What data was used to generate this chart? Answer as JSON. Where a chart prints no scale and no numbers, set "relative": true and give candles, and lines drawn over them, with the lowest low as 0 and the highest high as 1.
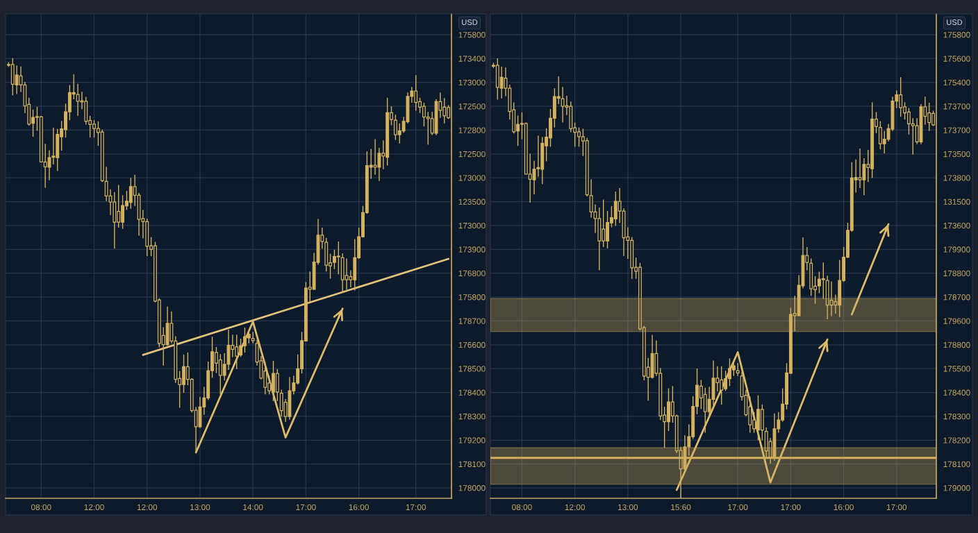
{
  "chart_data": [
    {
      "type": "candlestick",
      "relative": true,
      "ylabel": "USD",
      "color": "#d4b25f",
      "grid": true,
      "categories": [
        null,
        null,
        null,
        null,
        null,
        null,
        null,
        null,
        "08:00",
        null,
        null,
        null,
        null,
        null,
        null,
        null,
        null,
        null,
        null,
        null,
        null,
        "12:00",
        null,
        null,
        null,
        null,
        null,
        null,
        null,
        null,
        null,
        null,
        null,
        null,
        "12:00",
        null,
        null,
        null,
        null,
        null,
        null,
        null,
        null,
        null,
        null,
        null,
        null,
        "13:00",
        null,
        null,
        null,
        null,
        null,
        null,
        null,
        null,
        null,
        null,
        null,
        null,
        "14:00",
        null,
        null,
        null,
        null,
        null,
        null,
        null,
        null,
        null,
        null,
        null,
        null,
        "17:00",
        null,
        null,
        null,
        null,
        null,
        null,
        null,
        null,
        null,
        null,
        null,
        null,
        "16:00",
        null,
        null,
        null,
        null,
        null,
        null,
        null,
        null,
        null,
        null,
        null,
        null,
        null,
        "17:00",
        null,
        null,
        null,
        null,
        null,
        null,
        null,
        null
      ],
      "ohlc": [
        [
          0.984,
          0.99,
          0.978,
          0.982
        ],
        [
          0.984,
          1.0,
          0.906,
          0.934
        ],
        [
          0.932,
          0.981,
          0.909,
          0.957
        ],
        [
          0.955,
          0.979,
          0.914,
          0.932
        ],
        [
          0.932,
          0.94,
          0.861,
          0.879
        ],
        [
          0.883,
          0.9,
          0.829,
          0.833
        ],
        [
          0.835,
          0.87,
          0.801,
          0.85
        ],
        [
          0.852,
          0.877,
          0.816,
          0.85
        ],
        [
          0.852,
          0.854,
          0.737,
          0.737
        ],
        [
          0.737,
          0.783,
          0.672,
          0.725
        ],
        [
          0.724,
          0.767,
          0.691,
          0.748
        ],
        [
          0.749,
          0.824,
          0.731,
          0.752
        ],
        [
          0.748,
          0.821,
          0.714,
          0.807
        ],
        [
          0.801,
          0.841,
          0.766,
          0.821
        ],
        [
          0.819,
          0.885,
          0.799,
          0.864
        ],
        [
          0.864,
          0.932,
          0.843,
          0.913
        ],
        [
          0.909,
          0.959,
          0.896,
          0.913
        ],
        [
          0.908,
          0.935,
          0.854,
          0.891
        ],
        [
          0.892,
          0.915,
          0.871,
          0.889
        ],
        [
          0.891,
          0.902,
          0.832,
          0.84
        ],
        [
          0.842,
          0.854,
          0.799,
          0.832
        ],
        [
          0.833,
          0.843,
          0.799,
          0.822
        ],
        [
          0.822,
          0.84,
          0.778,
          0.812
        ],
        [
          0.813,
          0.819,
          0.686,
          0.69
        ],
        [
          0.688,
          0.725,
          0.638,
          0.651
        ],
        [
          0.651,
          0.668,
          0.603,
          0.636
        ],
        [
          0.636,
          0.661,
          0.518,
          0.585
        ],
        [
          0.612,
          0.679,
          0.571,
          0.585
        ],
        [
          0.585,
          0.653,
          0.568,
          0.627
        ],
        [
          0.626,
          0.664,
          0.616,
          0.638
        ],
        [
          0.635,
          0.697,
          0.619,
          0.675
        ],
        [
          0.675,
          0.705,
          0.626,
          0.653
        ],
        [
          0.653,
          0.659,
          0.551,
          0.592
        ],
        [
          0.594,
          0.616,
          0.544,
          0.586
        ],
        [
          0.586,
          0.594,
          0.499,
          0.524
        ],
        [
          0.525,
          0.547,
          0.499,
          0.516
        ],
        [
          0.525,
          0.535,
          0.382,
          0.385
        ],
        [
          0.388,
          0.392,
          0.268,
          0.278
        ],
        [
          0.298,
          0.319,
          0.222,
          0.275
        ],
        [
          0.275,
          0.371,
          0.272,
          0.329
        ],
        [
          0.329,
          0.359,
          0.278,
          0.284
        ],
        [
          0.284,
          0.296,
          0.178,
          0.187
        ],
        [
          0.189,
          0.208,
          0.115,
          0.174
        ],
        [
          0.174,
          0.25,
          0.153,
          0.219
        ],
        [
          0.219,
          0.255,
          0.172,
          0.187
        ],
        [
          0.187,
          0.19,
          0.103,
          0.108
        ],
        [
          0.109,
          0.117,
          0.0,
          0.067
        ],
        [
          0.067,
          0.143,
          0.064,
          0.117
        ],
        [
          0.117,
          0.168,
          0.097,
          0.14
        ],
        [
          0.14,
          0.232,
          0.135,
          0.209
        ],
        [
          0.209,
          0.295,
          0.191,
          0.257
        ],
        [
          0.255,
          0.269,
          0.203,
          0.228
        ],
        [
          0.236,
          0.251,
          0.149,
          0.197
        ],
        [
          0.197,
          0.253,
          0.184,
          0.225
        ],
        [
          0.225,
          0.313,
          0.211,
          0.273
        ],
        [
          0.273,
          0.3,
          0.243,
          0.263
        ],
        [
          0.269,
          0.3,
          0.213,
          0.246
        ],
        [
          0.249,
          0.29,
          0.244,
          0.272
        ],
        [
          0.272,
          0.318,
          0.255,
          0.295
        ],
        [
          0.292,
          0.313,
          0.278,
          0.301
        ],
        [
          0.29,
          0.307,
          0.278,
          0.285
        ],
        [
          0.278,
          0.287,
          0.222,
          0.231
        ],
        [
          0.234,
          0.246,
          0.187,
          0.19
        ],
        [
          0.208,
          0.231,
          0.149,
          0.167
        ],
        [
          0.178,
          0.196,
          0.149,
          0.158
        ],
        [
          0.155,
          0.234,
          0.132,
          0.202
        ],
        [
          0.202,
          0.213,
          0.132,
          0.155
        ],
        [
          0.152,
          0.161,
          0.093,
          0.108
        ],
        [
          0.129,
          0.137,
          0.079,
          0.093
        ],
        [
          0.093,
          0.193,
          0.085,
          0.158
        ],
        [
          0.158,
          0.196,
          0.149,
          0.178
        ],
        [
          0.178,
          0.25,
          0.174,
          0.214
        ],
        [
          0.214,
          0.307,
          0.202,
          0.285
        ],
        [
          0.284,
          0.433,
          0.283,
          0.418
        ],
        [
          0.42,
          0.46,
          0.38,
          0.415
        ],
        [
          0.415,
          0.507,
          0.414,
          0.484
        ],
        [
          0.483,
          0.593,
          0.477,
          0.552
        ],
        [
          0.552,
          0.571,
          0.518,
          0.536
        ],
        [
          0.534,
          0.545,
          0.46,
          0.476
        ],
        [
          0.482,
          0.505,
          0.442,
          0.474
        ],
        [
          0.483,
          0.515,
          0.466,
          0.498
        ],
        [
          0.499,
          0.536,
          0.453,
          0.497
        ],
        [
          0.495,
          0.506,
          0.407,
          0.439
        ],
        [
          0.45,
          0.493,
          0.414,
          0.439
        ],
        [
          0.447,
          0.463,
          0.42,
          0.439
        ],
        [
          0.439,
          0.542,
          0.412,
          0.495
        ],
        [
          0.495,
          0.571,
          0.492,
          0.548
        ],
        [
          0.548,
          0.626,
          0.546,
          0.609
        ],
        [
          0.609,
          0.764,
          0.606,
          0.728
        ],
        [
          0.724,
          0.77,
          0.695,
          0.729
        ],
        [
          0.729,
          0.795,
          0.705,
          0.724
        ],
        [
          0.724,
          0.773,
          0.689,
          0.759
        ],
        [
          0.759,
          0.792,
          0.719,
          0.752
        ],
        [
          0.749,
          0.9,
          0.728,
          0.862
        ],
        [
          0.862,
          0.878,
          0.83,
          0.845
        ],
        [
          0.843,
          0.857,
          0.793,
          0.806
        ],
        [
          0.806,
          0.835,
          0.784,
          0.816
        ],
        [
          0.816,
          0.851,
          0.811,
          0.84
        ],
        [
          0.839,
          0.913,
          0.835,
          0.903
        ],
        [
          0.903,
          0.927,
          0.887,
          0.917
        ],
        [
          0.917,
          0.957,
          0.867,
          0.888
        ],
        [
          0.89,
          0.9,
          0.861,
          0.876
        ],
        [
          0.878,
          0.887,
          0.827,
          0.851
        ],
        [
          0.851,
          0.864,
          0.781,
          0.847
        ],
        [
          0.847,
          0.864,
          0.805,
          0.81
        ],
        [
          0.81,
          0.896,
          0.805,
          0.89
        ],
        [
          0.89,
          0.913,
          0.849,
          0.868
        ],
        [
          0.876,
          0.899,
          0.835,
          0.854
        ],
        [
          0.875,
          0.881,
          0.846,
          0.849
        ]
      ],
      "series": [
        {
          "type": "line",
          "color": "#e2c27a",
          "values": [
            null,
            null,
            null,
            null,
            null,
            null,
            null,
            null,
            null,
            null,
            null,
            null,
            null,
            null,
            null,
            null,
            null,
            null,
            null,
            null,
            null,
            null,
            null,
            null,
            null,
            null,
            null,
            null,
            null,
            null,
            null,
            null,
            null,
            0.249,
            null,
            null,
            null,
            null,
            null,
            null,
            null,
            null,
            null,
            null,
            null,
            null,
            null,
            null,
            null,
            null,
            null,
            null,
            null,
            null,
            null,
            null,
            null,
            null,
            null,
            null,
            null,
            null,
            null,
            null,
            null,
            null,
            null,
            null,
            null,
            null,
            null,
            null,
            null,
            null,
            null,
            null,
            null,
            null,
            null,
            null,
            null,
            null,
            null,
            null,
            null,
            null,
            null,
            null,
            null,
            null,
            null,
            null,
            null,
            null,
            null,
            null,
            null,
            null,
            null,
            null,
            null,
            null,
            null,
            null,
            null,
            null,
            null,
            null,
            0.492
          ]
        },
        {
          "type": "line",
          "color": "#dcbb6a",
          "values": [
            null,
            null,
            null,
            null,
            null,
            null,
            null,
            null,
            null,
            null,
            null,
            null,
            null,
            null,
            null,
            null,
            null,
            null,
            null,
            null,
            null,
            null,
            null,
            null,
            null,
            null,
            null,
            null,
            null,
            null,
            null,
            null,
            null,
            null,
            null,
            null,
            null,
            null,
            null,
            null,
            null,
            null,
            null,
            null,
            null,
            null,
            0.002,
            null,
            null,
            null,
            null,
            null,
            null,
            null,
            null,
            null,
            null,
            null,
            null,
            null,
            0.333,
            null,
            null,
            null,
            null,
            null,
            null,
            null,
            0.04,
            null,
            null,
            null,
            null,
            null,
            null,
            null,
            null,
            null,
            null,
            null,
            null,
            null,
            0.366,
            null,
            null,
            null,
            null,
            null,
            null,
            null,
            null,
            null,
            null,
            null,
            null,
            null,
            null,
            null,
            null,
            null,
            null,
            null,
            null,
            null,
            null,
            null,
            null,
            null,
            null
          ]
        }
      ],
      "annotations": [
        "175800",
        "173400",
        "173000",
        "172500",
        "172800",
        "172500",
        "173000",
        "123500",
        "173000",
        "173900",
        "176800",
        "175800",
        "178700",
        "176600",
        "178500",
        "178400",
        "178300",
        "179200",
        "178100",
        "178000"
      ]
    },
    {
      "type": "candlestick",
      "relative": true,
      "ylabel": "USD",
      "color": "#d4b25f",
      "grid": true,
      "categories": [
        null,
        null,
        null,
        null,
        null,
        null,
        null,
        "08:00",
        null,
        null,
        null,
        null,
        null,
        null,
        null,
        null,
        null,
        null,
        null,
        null,
        "12:00",
        null,
        null,
        null,
        null,
        null,
        null,
        null,
        null,
        null,
        null,
        null,
        null,
        "13:00",
        null,
        null,
        null,
        null,
        null,
        null,
        null,
        null,
        null,
        null,
        null,
        null,
        "15:60",
        null,
        null,
        null,
        null,
        null,
        null,
        null,
        null,
        null,
        null,
        null,
        null,
        null,
        "17:00",
        null,
        null,
        null,
        null,
        null,
        null,
        null,
        null,
        null,
        null,
        null,
        null,
        "17:00",
        null,
        null,
        null,
        null,
        null,
        null,
        null,
        null,
        null,
        null,
        null,
        null,
        "16:00",
        null,
        null,
        null,
        null,
        null,
        null,
        null,
        null,
        null,
        null,
        null,
        null,
        "17:00",
        null,
        null,
        null,
        null,
        null,
        null,
        null,
        null,
        null
      ],
      "ohlc": [
        [
          0.984,
          0.99,
          0.978,
          0.982
        ],
        [
          0.984,
          1.0,
          0.906,
          0.934
        ],
        [
          0.932,
          0.981,
          0.909,
          0.957
        ],
        [
          0.955,
          0.979,
          0.914,
          0.932
        ],
        [
          0.932,
          0.94,
          0.861,
          0.879
        ],
        [
          0.883,
          0.9,
          0.829,
          0.833
        ],
        [
          0.835,
          0.87,
          0.801,
          0.85
        ],
        [
          0.852,
          0.877,
          0.816,
          0.85
        ],
        [
          0.852,
          0.854,
          0.737,
          0.737
        ],
        [
          0.737,
          0.783,
          0.672,
          0.725
        ],
        [
          0.724,
          0.767,
          0.691,
          0.748
        ],
        [
          0.749,
          0.824,
          0.731,
          0.752
        ],
        [
          0.748,
          0.821,
          0.714,
          0.807
        ],
        [
          0.801,
          0.841,
          0.766,
          0.821
        ],
        [
          0.819,
          0.885,
          0.799,
          0.864
        ],
        [
          0.864,
          0.932,
          0.843,
          0.913
        ],
        [
          0.909,
          0.959,
          0.896,
          0.913
        ],
        [
          0.908,
          0.935,
          0.854,
          0.891
        ],
        [
          0.892,
          0.915,
          0.871,
          0.889
        ],
        [
          0.891,
          0.902,
          0.832,
          0.84
        ],
        [
          0.842,
          0.854,
          0.799,
          0.832
        ],
        [
          0.833,
          0.843,
          0.799,
          0.822
        ],
        [
          0.822,
          0.84,
          0.778,
          0.812
        ],
        [
          0.813,
          0.819,
          0.686,
          0.69
        ],
        [
          0.688,
          0.725,
          0.638,
          0.651
        ],
        [
          0.651,
          0.668,
          0.603,
          0.636
        ],
        [
          0.636,
          0.661,
          0.518,
          0.585
        ],
        [
          0.612,
          0.679,
          0.571,
          0.585
        ],
        [
          0.585,
          0.653,
          0.568,
          0.627
        ],
        [
          0.626,
          0.664,
          0.616,
          0.638
        ],
        [
          0.635,
          0.697,
          0.619,
          0.675
        ],
        [
          0.675,
          0.705,
          0.626,
          0.653
        ],
        [
          0.653,
          0.659,
          0.551,
          0.592
        ],
        [
          0.594,
          0.616,
          0.544,
          0.586
        ],
        [
          0.586,
          0.594,
          0.499,
          0.524
        ],
        [
          0.525,
          0.547,
          0.499,
          0.516
        ],
        [
          0.525,
          0.535,
          0.382,
          0.385
        ],
        [
          0.388,
          0.392,
          0.268,
          0.278
        ],
        [
          0.298,
          0.319,
          0.222,
          0.275
        ],
        [
          0.275,
          0.371,
          0.272,
          0.329
        ],
        [
          0.329,
          0.359,
          0.278,
          0.284
        ],
        [
          0.284,
          0.296,
          0.178,
          0.187
        ],
        [
          0.189,
          0.208,
          0.115,
          0.174
        ],
        [
          0.174,
          0.25,
          0.153,
          0.219
        ],
        [
          0.219,
          0.255,
          0.172,
          0.187
        ],
        [
          0.187,
          0.19,
          0.103,
          0.108
        ],
        [
          0.109,
          0.117,
          0.0,
          0.067
        ],
        [
          0.067,
          0.143,
          0.064,
          0.117
        ],
        [
          0.117,
          0.168,
          0.097,
          0.14
        ],
        [
          0.14,
          0.232,
          0.135,
          0.209
        ],
        [
          0.209,
          0.295,
          0.191,
          0.257
        ],
        [
          0.255,
          0.269,
          0.203,
          0.228
        ],
        [
          0.236,
          0.251,
          0.149,
          0.197
        ],
        [
          0.197,
          0.253,
          0.184,
          0.225
        ],
        [
          0.225,
          0.313,
          0.211,
          0.273
        ],
        [
          0.273,
          0.3,
          0.243,
          0.263
        ],
        [
          0.269,
          0.3,
          0.213,
          0.246
        ],
        [
          0.249,
          0.29,
          0.244,
          0.272
        ],
        [
          0.272,
          0.318,
          0.255,
          0.295
        ],
        [
          0.292,
          0.313,
          0.278,
          0.301
        ],
        [
          0.29,
          0.307,
          0.278,
          0.285
        ],
        [
          0.278,
          0.287,
          0.222,
          0.231
        ],
        [
          0.234,
          0.246,
          0.187,
          0.19
        ],
        [
          0.208,
          0.231,
          0.149,
          0.167
        ],
        [
          0.178,
          0.196,
          0.149,
          0.158
        ],
        [
          0.155,
          0.234,
          0.132,
          0.202
        ],
        [
          0.202,
          0.213,
          0.132,
          0.155
        ],
        [
          0.152,
          0.161,
          0.093,
          0.108
        ],
        [
          0.129,
          0.137,
          0.079,
          0.093
        ],
        [
          0.093,
          0.193,
          0.085,
          0.158
        ],
        [
          0.158,
          0.196,
          0.149,
          0.178
        ],
        [
          0.178,
          0.25,
          0.174,
          0.214
        ],
        [
          0.214,
          0.307,
          0.202,
          0.285
        ],
        [
          0.284,
          0.433,
          0.283,
          0.418
        ],
        [
          0.42,
          0.46,
          0.38,
          0.415
        ],
        [
          0.415,
          0.507,
          0.414,
          0.484
        ],
        [
          0.483,
          0.593,
          0.477,
          0.552
        ],
        [
          0.552,
          0.571,
          0.518,
          0.536
        ],
        [
          0.534,
          0.545,
          0.46,
          0.476
        ],
        [
          0.482,
          0.505,
          0.442,
          0.474
        ],
        [
          0.483,
          0.515,
          0.466,
          0.498
        ],
        [
          0.499,
          0.536,
          0.453,
          0.497
        ],
        [
          0.495,
          0.506,
          0.407,
          0.439
        ],
        [
          0.45,
          0.493,
          0.414,
          0.439
        ],
        [
          0.447,
          0.463,
          0.42,
          0.439
        ],
        [
          0.439,
          0.542,
          0.412,
          0.495
        ],
        [
          0.495,
          0.571,
          0.492,
          0.548
        ],
        [
          0.548,
          0.626,
          0.546,
          0.609
        ],
        [
          0.609,
          0.764,
          0.606,
          0.728
        ],
        [
          0.724,
          0.77,
          0.695,
          0.729
        ],
        [
          0.729,
          0.795,
          0.705,
          0.724
        ],
        [
          0.724,
          0.773,
          0.689,
          0.759
        ],
        [
          0.759,
          0.792,
          0.719,
          0.752
        ],
        [
          0.749,
          0.9,
          0.728,
          0.862
        ],
        [
          0.862,
          0.878,
          0.83,
          0.845
        ],
        [
          0.843,
          0.857,
          0.793,
          0.806
        ],
        [
          0.806,
          0.835,
          0.784,
          0.816
        ],
        [
          0.816,
          0.851,
          0.811,
          0.84
        ],
        [
          0.839,
          0.913,
          0.835,
          0.903
        ],
        [
          0.903,
          0.927,
          0.887,
          0.917
        ],
        [
          0.917,
          0.957,
          0.867,
          0.888
        ],
        [
          0.89,
          0.9,
          0.861,
          0.876
        ],
        [
          0.878,
          0.887,
          0.827,
          0.851
        ],
        [
          0.851,
          0.864,
          0.781,
          0.847
        ],
        [
          0.847,
          0.864,
          0.805,
          0.81
        ],
        [
          0.81,
          0.896,
          0.805,
          0.89
        ],
        [
          0.89,
          0.913,
          0.849,
          0.868
        ],
        [
          0.876,
          0.899,
          0.835,
          0.854
        ],
        [
          0.875,
          0.881,
          0.846,
          0.849
        ]
      ],
      "series": [
        {
          "type": "line",
          "color": "#dcbb6a",
          "values": [
            null,
            null,
            null,
            null,
            null,
            null,
            null,
            null,
            null,
            null,
            null,
            null,
            null,
            null,
            null,
            null,
            null,
            null,
            null,
            null,
            null,
            null,
            null,
            null,
            null,
            null,
            null,
            null,
            null,
            null,
            null,
            null,
            null,
            null,
            null,
            null,
            null,
            null,
            null,
            null,
            null,
            null,
            null,
            null,
            null,
            0.019,
            null,
            null,
            null,
            null,
            null,
            null,
            null,
            null,
            null,
            null,
            null,
            null,
            null,
            null,
            0.332,
            null,
            null,
            null,
            null,
            null,
            null,
            null,
            0.036,
            null,
            null,
            null,
            null,
            null,
            null,
            null,
            null,
            null,
            null,
            null,
            null,
            null,
            0.361,
            null,
            null,
            null,
            null,
            null,
            null,
            null,
            null,
            null,
            null,
            null,
            null,
            null,
            null,
            null,
            null,
            null,
            null,
            null,
            null,
            null,
            null,
            null,
            null,
            null,
            null
          ]
        },
        {
          "type": "line",
          "color": "#dcbb6a",
          "values": [
            null,
            null,
            null,
            null,
            null,
            null,
            null,
            null,
            null,
            null,
            null,
            null,
            null,
            null,
            null,
            null,
            null,
            null,
            null,
            null,
            null,
            null,
            null,
            null,
            null,
            null,
            null,
            null,
            null,
            null,
            null,
            null,
            null,
            null,
            null,
            null,
            null,
            null,
            null,
            null,
            null,
            null,
            null,
            null,
            null,
            null,
            null,
            null,
            null,
            null,
            null,
            null,
            null,
            null,
            null,
            null,
            null,
            null,
            null,
            null,
            null,
            null,
            null,
            null,
            null,
            null,
            null,
            null,
            null,
            null,
            null,
            null,
            null,
            null,
            null,
            null,
            null,
            null,
            null,
            null,
            null,
            null,
            null,
            null,
            null,
            null,
            null,
            null,
            0.418,
            null,
            null,
            null,
            null,
            null,
            null,
            null,
            null,
            0.623,
            null,
            null,
            null,
            null,
            null,
            null,
            null,
            null,
            null,
            null,
            null
          ]
        }
      ],
      "ref_lines": [
        {
          "axis": "y",
          "value": 0.092,
          "color": "#d8b55e"
        }
      ],
      "bands": [
        {
          "axis": "y",
          "from": 0.032,
          "to": 0.115,
          "color": "#c9a65a"
        },
        {
          "axis": "y",
          "from": 0.379,
          "to": 0.454,
          "color": "#c9a65a"
        }
      ],
      "annotations": [
        "175800",
        "175600",
        "175400",
        "173700",
        "173700",
        "173500",
        "173800",
        "131500",
        "173600",
        "179900",
        "178800",
        "178700",
        "179600",
        "178800",
        "175500",
        "178400",
        "178300",
        "178200",
        "178100",
        "179000"
      ]
    }
  ]
}
